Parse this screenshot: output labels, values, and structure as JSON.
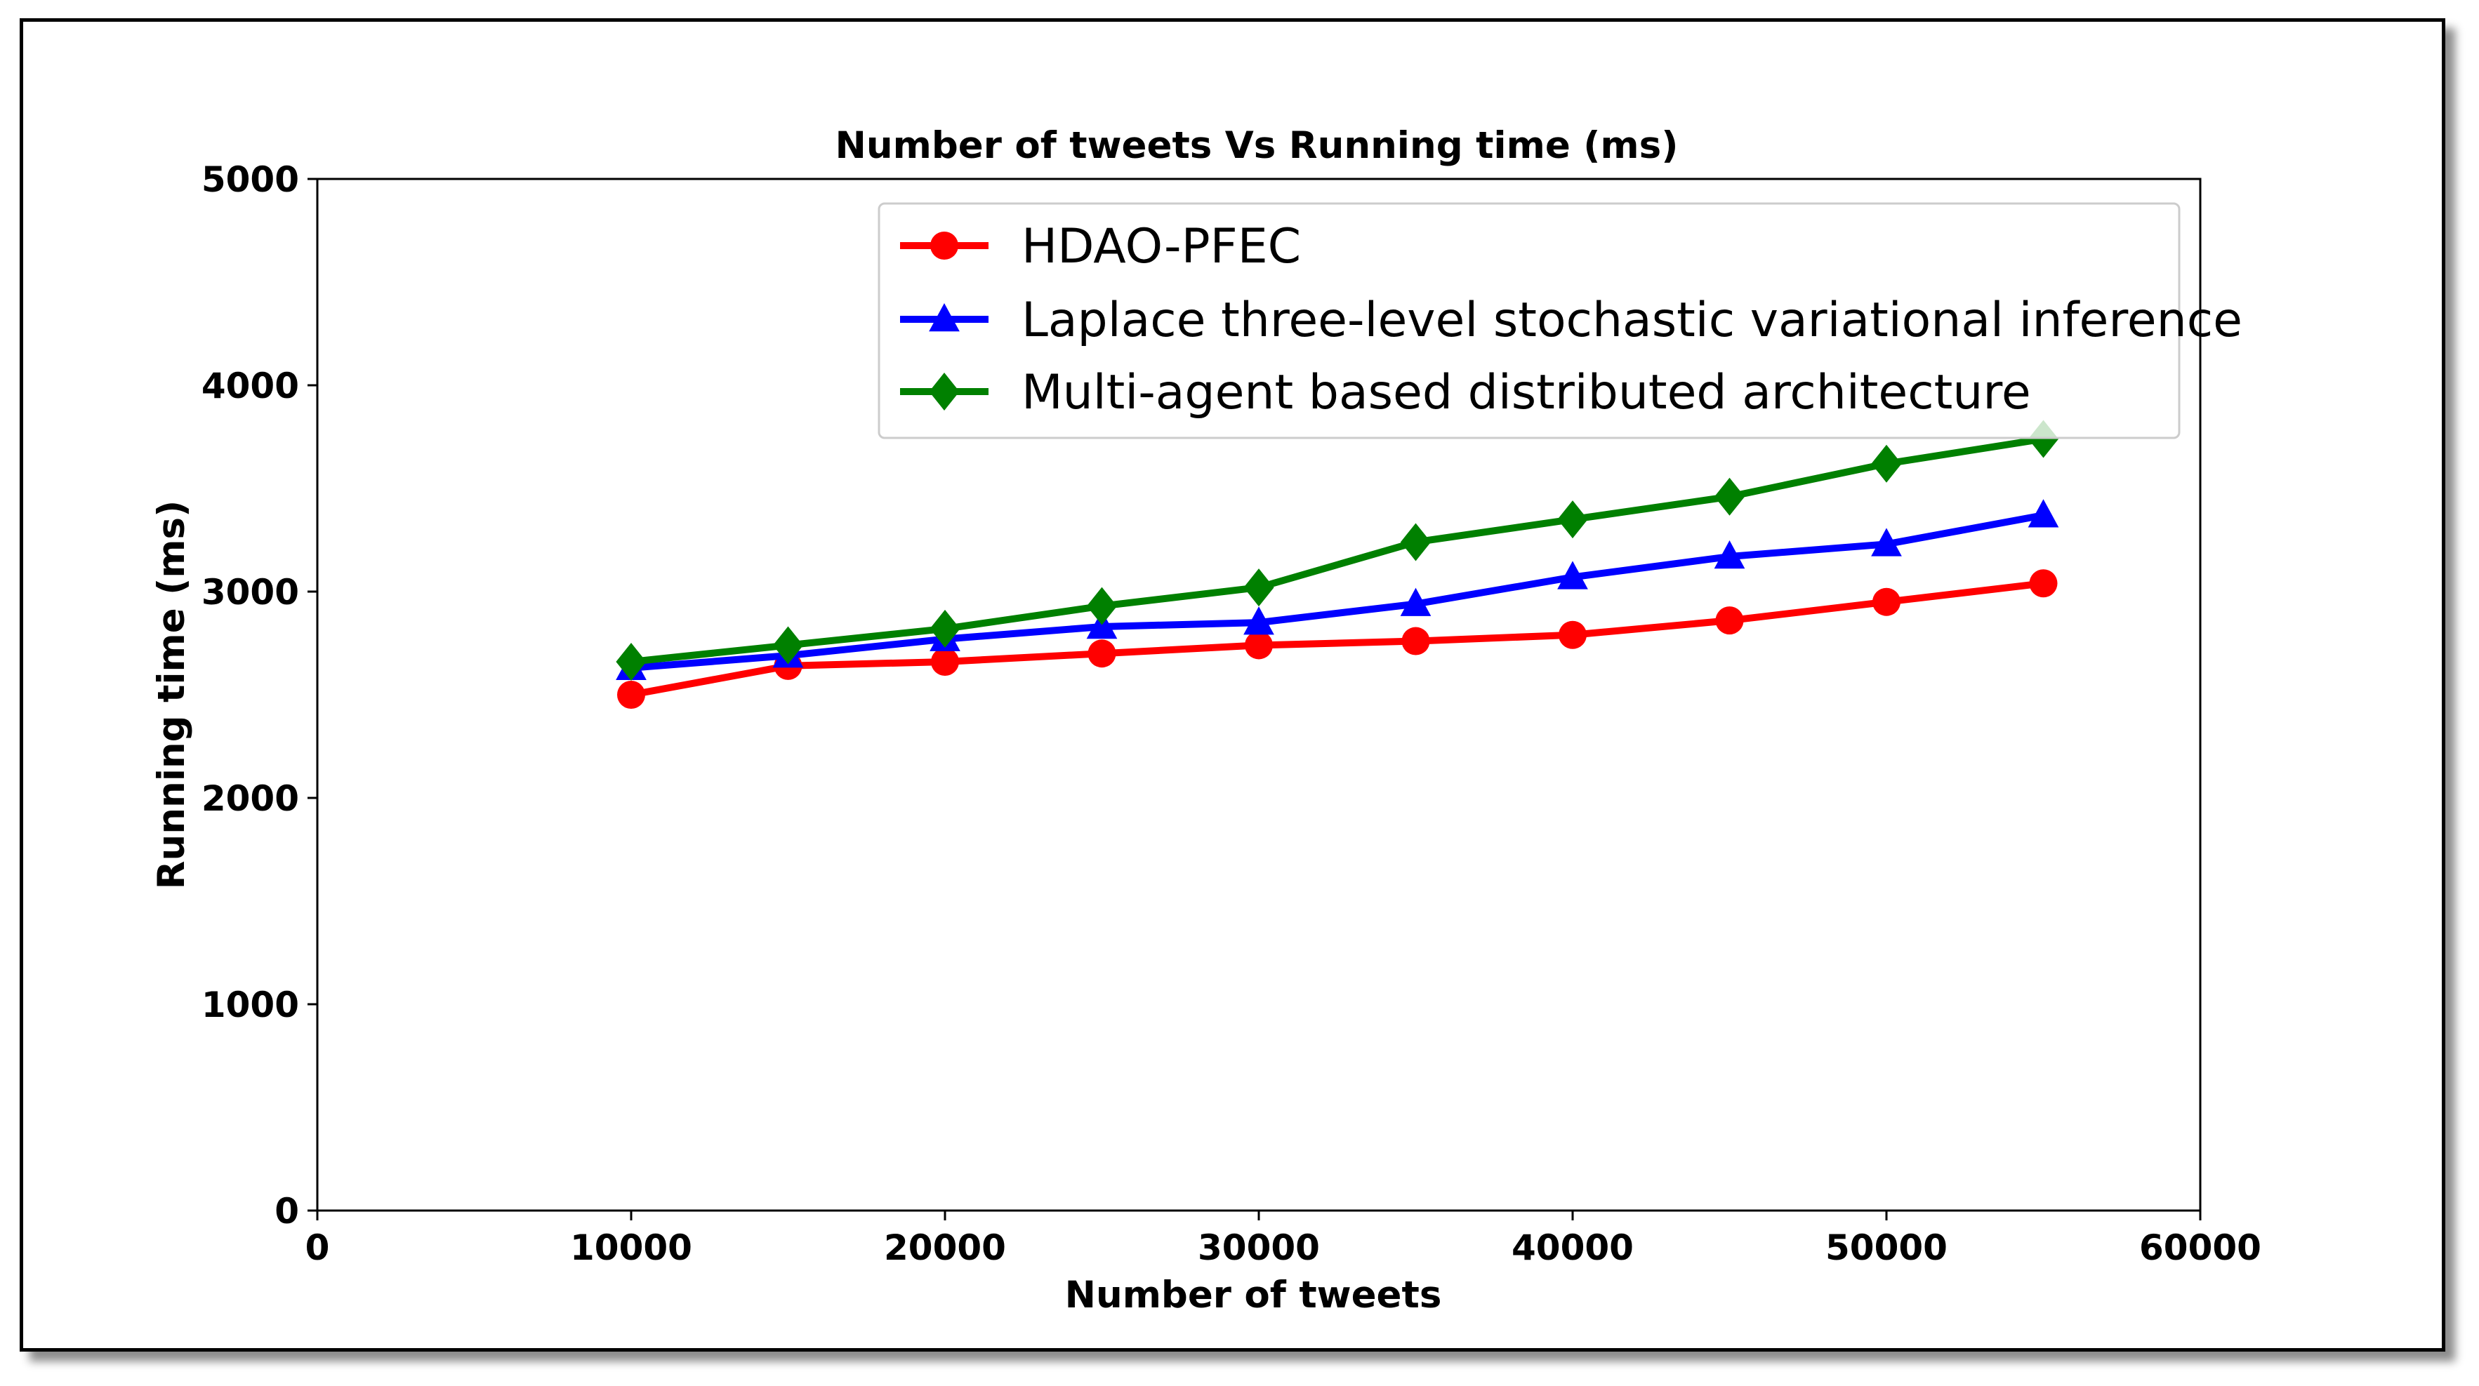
{
  "chart_data": {
    "type": "line",
    "title": "Number of tweets Vs Running time (ms)",
    "xlabel": "Number of tweets",
    "ylabel": "Running time (ms)",
    "xlim": [
      0,
      60000
    ],
    "ylim": [
      0,
      5000
    ],
    "x_ticks": [
      "0",
      "10000",
      "20000",
      "30000",
      "40000",
      "50000",
      "60000"
    ],
    "y_ticks": [
      "0",
      "1000",
      "2000",
      "3000",
      "4000",
      "5000"
    ],
    "x_tick_values": [
      0,
      10000,
      20000,
      30000,
      40000,
      50000,
      60000
    ],
    "y_tick_values": [
      0,
      1000,
      2000,
      3000,
      4000,
      5000
    ],
    "grid": false,
    "legend_position": "top-right",
    "x": [
      10000,
      15000,
      20000,
      25000,
      30000,
      35000,
      40000,
      45000,
      50000,
      55000
    ],
    "series": [
      {
        "name": "HDAO-PFEC",
        "color": "#ff0000",
        "marker": "circle",
        "values": [
          2500,
          2640,
          2660,
          2700,
          2740,
          2760,
          2790,
          2860,
          2950,
          3040
        ]
      },
      {
        "name": "Laplace three-level stochastic variational inference",
        "color": "#0000ff",
        "marker": "triangle",
        "values": [
          2630,
          2690,
          2770,
          2830,
          2850,
          2940,
          3070,
          3170,
          3230,
          3370
        ]
      },
      {
        "name": "Multi-agent based distributed architecture",
        "color": "#008000",
        "marker": "diamond",
        "values": [
          2660,
          2740,
          2820,
          2930,
          3020,
          3240,
          3350,
          3460,
          3620,
          3740
        ]
      }
    ]
  }
}
